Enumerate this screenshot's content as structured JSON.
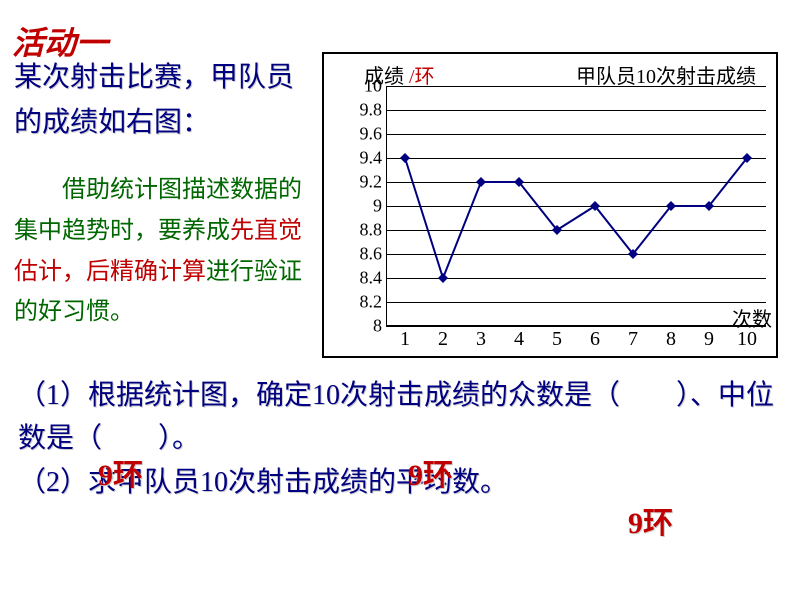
{
  "title": "活动一",
  "intro_text": "某次射击比赛，甲队员的成绩如右图：",
  "hint": {
    "pre": "借助统计图描述数据的集中趋势时，要养成",
    "red1": "先直觉估计，后精确计算",
    "post": "进行验证的好习惯。"
  },
  "chart": {
    "type": "line",
    "title_left_a": "成绩",
    "title_left_b": "/环",
    "title_right": "甲队员10次射击成绩",
    "x_label": "次数",
    "x_values": [
      1,
      2,
      3,
      4,
      5,
      6,
      7,
      8,
      9,
      10
    ],
    "y_ticks": [
      8,
      8.2,
      8.4,
      8.6,
      8.8,
      9,
      9.2,
      9.4,
      9.6,
      9.8,
      10
    ],
    "y_tick_labels": [
      "8",
      "8.2",
      "8.4",
      "8.6",
      "8.8",
      "9",
      "9.2",
      "9.4",
      "9.6",
      "9.8",
      "10"
    ],
    "ylim": [
      8,
      10
    ],
    "series": [
      9.4,
      8.4,
      9.2,
      9.2,
      8.8,
      9.0,
      8.6,
      9.0,
      9.0,
      9.4
    ],
    "line_color": "#000080",
    "marker_color": "#000080",
    "marker_style": "diamond",
    "marker_size": 10,
    "line_width": 2,
    "grid_color": "#000000",
    "background_color": "#ffffff"
  },
  "questions": {
    "q1": "（1）根据统计图，确定10次射击成绩的众数是（　　）、中位数是（　　）。",
    "q2": "（2）求甲队员10次射击成绩的平均数。"
  },
  "answers": {
    "mode": "9环",
    "median": "9环",
    "mean": "9环"
  }
}
